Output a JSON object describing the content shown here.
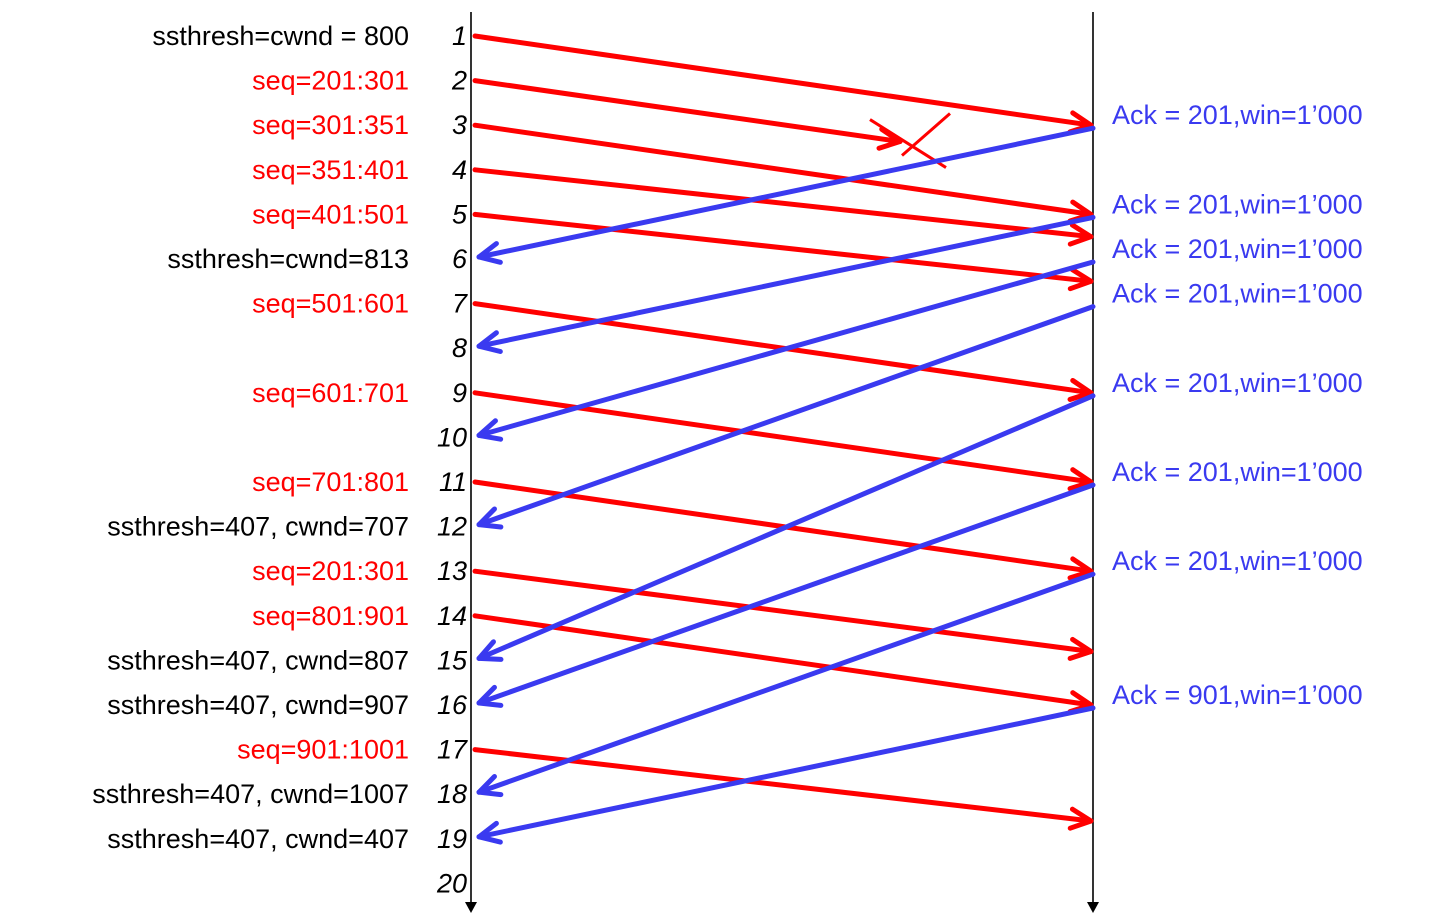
{
  "colors": {
    "segment": "#ff0000",
    "ack": "#3a3af0",
    "note": "#000000",
    "timeline": "#000000"
  },
  "steps": [
    {
      "n": "1",
      "label": "ssthresh=cwnd = 800",
      "kind": "note"
    },
    {
      "n": "2",
      "label": "seq=201:301",
      "kind": "segment"
    },
    {
      "n": "3",
      "label": "seq=301:351",
      "kind": "segment"
    },
    {
      "n": "4",
      "label": "seq=351:401",
      "kind": "segment"
    },
    {
      "n": "5",
      "label": "seq=401:501",
      "kind": "segment"
    },
    {
      "n": "6",
      "label": "ssthresh=cwnd=813",
      "kind": "note"
    },
    {
      "n": "7",
      "label": "seq=501:601",
      "kind": "segment"
    },
    {
      "n": "8",
      "label": "",
      "kind": "none"
    },
    {
      "n": "9",
      "label": "seq=601:701",
      "kind": "segment"
    },
    {
      "n": "10",
      "label": "",
      "kind": "none"
    },
    {
      "n": "11",
      "label": "seq=701:801",
      "kind": "segment"
    },
    {
      "n": "12",
      "label": "ssthresh=407, cwnd=707",
      "kind": "note"
    },
    {
      "n": "13",
      "label": "seq=201:301",
      "kind": "segment"
    },
    {
      "n": "14",
      "label": "seq=801:901",
      "kind": "segment"
    },
    {
      "n": "15",
      "label": "ssthresh=407, cwnd=807",
      "kind": "note"
    },
    {
      "n": "16",
      "label": "ssthresh=407, cwnd=907",
      "kind": "note"
    },
    {
      "n": "17",
      "label": "seq=901:1001",
      "kind": "segment"
    },
    {
      "n": "18",
      "label": "ssthresh=407, cwnd=1007",
      "kind": "note"
    },
    {
      "n": "19",
      "label": "ssthresh=407, cwnd=407",
      "kind": "note"
    },
    {
      "n": "20",
      "label": "",
      "kind": "none"
    }
  ],
  "acks": [
    {
      "text": "Ack = 201,win=1’000",
      "at": 3,
      "to": 6
    },
    {
      "text": "Ack = 201,win=1’000",
      "at": 5,
      "to": 8
    },
    {
      "text": "Ack = 201,win=1’000",
      "at": 6,
      "to": 10
    },
    {
      "text": "Ack = 201,win=1’000",
      "at": 7,
      "to": 12
    },
    {
      "text": "Ack = 201,win=1’000",
      "at": 9,
      "to": 15
    },
    {
      "text": "Ack = 201,win=1’000",
      "at": 11,
      "to": 16
    },
    {
      "text": "Ack = 201,win=1’000",
      "at": 13,
      "to": 18
    },
    {
      "text": "Ack = 901,win=1’000",
      "at": 16,
      "to": 19
    }
  ],
  "segments": [
    {
      "from": 1,
      "to": 3,
      "lost": false
    },
    {
      "from": 2,
      "lost": true
    },
    {
      "from": 3,
      "to": 5,
      "lost": false
    },
    {
      "from": 4,
      "to": 5.5,
      "lost": false
    },
    {
      "from": 5,
      "to": 6.5,
      "lost": false
    },
    {
      "from": 7,
      "to": 9,
      "lost": false
    },
    {
      "from": 9,
      "to": 11,
      "lost": false
    },
    {
      "from": 11,
      "to": 13,
      "lost": false
    },
    {
      "from": 13,
      "to": 14.8,
      "lost": false
    },
    {
      "from": 14,
      "to": 16,
      "lost": false
    },
    {
      "from": 17,
      "to": 18.6,
      "lost": false
    }
  ]
}
